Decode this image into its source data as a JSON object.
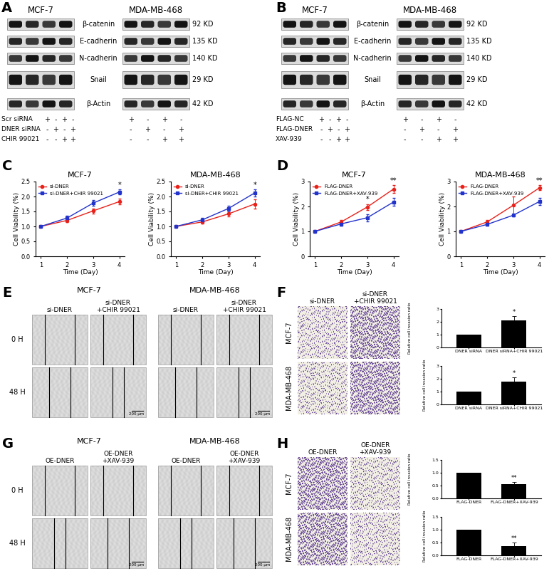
{
  "panels": {
    "A": {
      "letter": "A",
      "cell_lines": [
        "MCF-7",
        "MDA-MB-468"
      ],
      "proteins": [
        {
          "name": "β-catenin",
          "size": "92 KD"
        },
        {
          "name": "E-cadherin",
          "size": "135 KD"
        },
        {
          "name": "N-cadherin",
          "size": "140 KD"
        },
        {
          "name": "Snail",
          "size": "29 KD"
        },
        {
          "name": "β-Actin",
          "size": "42 KD"
        }
      ],
      "conditions": [
        {
          "name": "Scr siRNA",
          "signs": [
            "+",
            "-",
            "+",
            "-"
          ]
        },
        {
          "name": "DNER siRNA",
          "signs": [
            "-",
            "+",
            "-",
            "+"
          ]
        },
        {
          "name": "CHIR 99021",
          "signs": [
            "-",
            "-",
            "+",
            "+"
          ]
        }
      ]
    },
    "B": {
      "letter": "B",
      "cell_lines": [
        "MCF-7",
        "MDA-MB-468"
      ],
      "proteins": [
        {
          "name": "β-catenin",
          "size": "92 KD"
        },
        {
          "name": "E-cadherin",
          "size": "135 KD"
        },
        {
          "name": "N-cadherin",
          "size": "140 KD"
        },
        {
          "name": "Snail",
          "size": "29 KD"
        },
        {
          "name": "β-Actin",
          "size": "42 KD"
        }
      ],
      "conditions": [
        {
          "name": "FLAG-NC",
          "signs": [
            "+",
            "-",
            "+",
            "-"
          ]
        },
        {
          "name": "FLAG-DNER",
          "signs": [
            "-",
            "+",
            "-",
            "+"
          ]
        },
        {
          "name": "XAV-939",
          "signs": [
            "-",
            "-",
            "+",
            "+"
          ]
        }
      ]
    },
    "C": {
      "letter": "C"
    },
    "D": {
      "letter": "D"
    },
    "E": {
      "letter": "E",
      "cell_lines": [
        "MCF-7",
        "MDA-MB-468"
      ],
      "groups": [
        "si-DNER",
        "si-DNER\n+CHIR 99021"
      ],
      "times": [
        "0 H",
        "48 H"
      ],
      "scale_bar": "200 μm"
    },
    "F": {
      "letter": "F",
      "cell_lines": [
        "MCF-7",
        "MDA-MB-468"
      ],
      "groups": [
        "si-DNER",
        "si-DNER\n+CHIR 99021"
      ]
    },
    "G": {
      "letter": "G",
      "cell_lines": [
        "MCF-7",
        "MDA-MB-468"
      ],
      "groups": [
        "OE-DNER",
        "OE-DNER\n+XAV-939"
      ],
      "times": [
        "0 H",
        "48 H"
      ],
      "scale_bar": "200 μm"
    },
    "H": {
      "letter": "H",
      "cell_lines": [
        "MCF-7",
        "MDA-MB-468"
      ],
      "groups": [
        "OE-DNER",
        "OE-DNER\n+XAV-939"
      ]
    }
  },
  "chart_data": [
    {
      "type": "line",
      "title": "MCF-7",
      "x_label": "Time (Day)",
      "y_label": "Cell Viability (%)",
      "x": [
        1,
        2,
        3,
        4
      ],
      "xlim": [
        0.8,
        4.2
      ],
      "xticks": [
        1,
        2,
        3,
        4
      ],
      "ylim": [
        0,
        2.5
      ],
      "yticks": [
        {
          "value": 0,
          "label": "0.0"
        },
        0.5,
        {
          "value": 1,
          "label": "1.0"
        },
        1.5,
        {
          "value": 2,
          "label": "2.0"
        },
        2.5
      ],
      "legend": "upper left",
      "series": [
        {
          "name": "si-DNER",
          "color": "#e8221b",
          "marker": "circle",
          "values": [
            1.0,
            1.2,
            1.52,
            1.83
          ],
          "errors": [
            0.02,
            0.06,
            0.08,
            0.09
          ]
        },
        {
          "name": "si-DNER+CHIR 99021",
          "color": "#2233cc",
          "marker": "square",
          "values": [
            1.0,
            1.28,
            1.78,
            2.15
          ],
          "errors": [
            0.02,
            0.07,
            0.1,
            0.08
          ]
        }
      ],
      "annotations": [
        null,
        null,
        null,
        "*"
      ]
    },
    {
      "type": "line",
      "title": "MDA-MB-468",
      "x_label": "Time (Day)",
      "y_label": "Cell Viability (%)",
      "x": [
        1,
        2,
        3,
        4
      ],
      "xlim": [
        0.8,
        4.2
      ],
      "xticks": [
        1,
        2,
        3,
        4
      ],
      "ylim": [
        0,
        2.5
      ],
      "yticks": [
        {
          "value": 0,
          "label": "0.0"
        },
        0.5,
        {
          "value": 1,
          "label": "1.0"
        },
        1.5,
        {
          "value": 2,
          "label": "2.0"
        },
        2.5
      ],
      "legend": "upper left",
      "series": [
        {
          "name": "si-DNER",
          "color": "#e8221b",
          "marker": "circle",
          "values": [
            1.0,
            1.15,
            1.42,
            1.75
          ],
          "errors": [
            0.02,
            0.05,
            0.08,
            0.15
          ]
        },
        {
          "name": "si-DNER+CHIR 99021",
          "color": "#2233cc",
          "marker": "square",
          "values": [
            1.0,
            1.22,
            1.6,
            2.12
          ],
          "errors": [
            0.02,
            0.06,
            0.1,
            0.12
          ]
        }
      ],
      "annotations": [
        null,
        null,
        null,
        "*"
      ]
    },
    {
      "type": "line",
      "title": "MCF-7",
      "x_label": "Time (Day)",
      "y_label": "Cell Viability (%)",
      "x": [
        1,
        2,
        3,
        4
      ],
      "xlim": [
        0.8,
        4.2
      ],
      "xticks": [
        1,
        2,
        3,
        4
      ],
      "ylim": [
        0,
        3
      ],
      "yticks": [
        0,
        1,
        2,
        3
      ],
      "legend": "upper left",
      "series": [
        {
          "name": "FLAG-DNER",
          "color": "#e8221b",
          "marker": "circle",
          "values": [
            1.0,
            1.38,
            1.98,
            2.7
          ],
          "errors": [
            0.02,
            0.08,
            0.12,
            0.15
          ]
        },
        {
          "name": "FLAG-DNER+XAV-939",
          "color": "#2233cc",
          "marker": "square",
          "values": [
            1.0,
            1.3,
            1.55,
            2.18
          ],
          "errors": [
            0.02,
            0.07,
            0.15,
            0.15
          ]
        }
      ],
      "annotations": [
        null,
        null,
        "*",
        "**"
      ]
    },
    {
      "type": "line",
      "title": "MDA-MB-468",
      "x_label": "Time (Day)",
      "y_label": "Cell Viability (%)",
      "x": [
        1,
        2,
        3,
        4
      ],
      "xlim": [
        0.8,
        4.2
      ],
      "xticks": [
        1,
        2,
        3,
        4
      ],
      "ylim": [
        0,
        3
      ],
      "yticks": [
        0,
        1,
        2,
        3
      ],
      "legend": "upper left",
      "series": [
        {
          "name": "FLAG-DNER",
          "color": "#e8221b",
          "marker": "circle",
          "values": [
            1.0,
            1.38,
            2.05,
            2.75
          ],
          "errors": [
            0.02,
            0.07,
            0.35,
            0.1
          ]
        },
        {
          "name": "FLAG-DNER+XAV-939",
          "color": "#2233cc",
          "marker": "square",
          "values": [
            1.0,
            1.28,
            1.65,
            2.2
          ],
          "errors": [
            0.02,
            0.05,
            0.05,
            0.15
          ]
        }
      ],
      "annotations": [
        null,
        null,
        null,
        "**"
      ]
    },
    {
      "type": "bar",
      "y_label": "Relative cell invasion ratio",
      "categories": [
        "DNER siRNA",
        "DNER siRNA+CHIR 99021"
      ],
      "values": [
        1,
        2.1
      ],
      "errors": [
        0,
        0.35
      ],
      "color": "#000000",
      "ylim": [
        0,
        3
      ],
      "yticks": [
        0,
        1,
        2,
        3
      ],
      "annotations": [
        null,
        "*"
      ]
    },
    {
      "type": "bar",
      "y_label": "Relative cell invasion ratio",
      "categories": [
        "DNER siRNA",
        "DNER siRNA+CHIR 99021"
      ],
      "values": [
        1,
        1.8
      ],
      "errors": [
        0,
        0.3
      ],
      "color": "#000000",
      "ylim": [
        0,
        3
      ],
      "yticks": [
        0,
        1,
        2,
        3
      ],
      "annotations": [
        null,
        "*"
      ]
    },
    {
      "type": "bar",
      "y_label": "Relative cell invasion ratio",
      "categories": [
        "FLAG-DNER",
        "FLAG-DNER+XAV-939"
      ],
      "values": [
        1,
        0.55
      ],
      "errors": [
        0,
        0.08
      ],
      "color": "#000000",
      "ylim": [
        0,
        1.5
      ],
      "yticks": [
        {
          "value": 0,
          "label": "0.0"
        },
        0.5,
        {
          "value": 1,
          "label": "1.0"
        },
        1.5
      ],
      "annotations": [
        null,
        "**"
      ]
    },
    {
      "type": "bar",
      "y_label": "Relative cell invasion ratio",
      "categories": [
        "FLAG-DNER",
        "FLAG-DNER+XAV-939"
      ],
      "values": [
        1,
        0.35
      ],
      "errors": [
        0,
        0.15
      ],
      "color": "#000000",
      "ylim": [
        0,
        1.5
      ],
      "yticks": [
        {
          "value": 0,
          "label": "0.0"
        },
        0.5,
        {
          "value": 1,
          "label": "1.0"
        },
        1.5
      ],
      "annotations": [
        null,
        "**"
      ]
    }
  ]
}
